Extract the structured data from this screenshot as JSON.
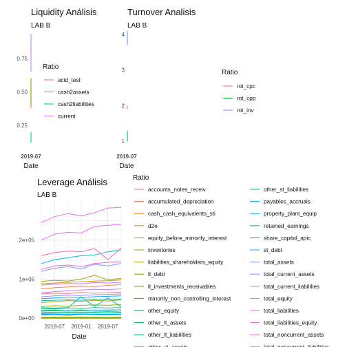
{
  "chart_data": [
    {
      "type": "line",
      "title": "Liquidity Análisis",
      "subtitle": "LAB B",
      "xlabel": "Date",
      "ylabel": "",
      "x": [
        "2019-07"
      ],
      "x_ticks": [
        "2019-07"
      ],
      "y_ticks": [
        0.25,
        0.5,
        0.75
      ],
      "y_tick_labels": [
        "0.25",
        "0.50",
        "0.75"
      ],
      "ylim": [
        0.09,
        0.97
      ],
      "grid": false,
      "legend_title": "Ratio",
      "legend_position": "right",
      "series": [
        {
          "name": "acid_test",
          "color": "#F8766D",
          "values": [
            [
              0.38,
              0.55
            ]
          ]
        },
        {
          "name": "cash2assets",
          "color": "#7CAE00",
          "values": [
            [
              0.4,
              0.6
            ]
          ]
        },
        {
          "name": "cash2liabilities",
          "color": "#00BFC4",
          "values": [
            [
              0.12,
              0.2
            ]
          ]
        },
        {
          "name": "current",
          "color": "#C77CFF",
          "values": [
            [
              0.65,
              0.93
            ]
          ]
        }
      ]
    },
    {
      "type": "line",
      "title": "Turnover Analisis",
      "subtitle": "LAB B",
      "xlabel": "Date",
      "ylabel": "",
      "x": [
        "2019-07"
      ],
      "x_ticks": [
        "2019-07"
      ],
      "y_ticks": [
        1,
        2,
        3,
        4
      ],
      "y_tick_labels": [
        "1",
        "2",
        "3",
        "4"
      ],
      "ylim": [
        0.85,
        4.15
      ],
      "grid": false,
      "legend_title": "Ratio",
      "legend_position": "right",
      "series": [
        {
          "name": "rot_cpc",
          "color": "#F8766D",
          "values": [
            [
              1.9,
              2.0
            ]
          ]
        },
        {
          "name": "rot_cpp",
          "color": "#00BA38",
          "values": [
            [
              1.0,
              1.3
            ]
          ]
        },
        {
          "name": "rot_inv",
          "color": "#619CFF",
          "values": [
            [
              3.7,
              4.1
            ]
          ]
        }
      ]
    },
    {
      "type": "line",
      "title": "Leverage Análisis",
      "subtitle": "LAB B",
      "xlabel": "Date",
      "ylabel": "",
      "x": [
        "2018-04",
        "2018-07",
        "2018-10",
        "2019-01",
        "2019-04",
        "2019-07",
        "2019-10"
      ],
      "x_ticks": [
        "2018-07",
        "2019-01",
        "2019-07"
      ],
      "y_ticks": [
        0,
        100000,
        200000
      ],
      "y_tick_labels": [
        "0e+00",
        "1e+05",
        "2e+05"
      ],
      "ylim": [
        -5000,
        300000
      ],
      "grid": true,
      "legend_title": "Ratio",
      "legend_position": "right",
      "series": [
        {
          "name": "accounts_notes_receiv",
          "color": "#F8766D",
          "values": [
            62000,
            64000,
            63000,
            66000,
            64000,
            65000,
            67000
          ]
        },
        {
          "name": "accumulated_depreciation",
          "color": "#F07E4F",
          "values": [
            75000,
            78000,
            80000,
            82000,
            81000,
            84000,
            86000
          ]
        },
        {
          "name": "cash_cash_equivalents_sti",
          "color": "#E58700",
          "values": [
            8000,
            9000,
            7000,
            10000,
            9000,
            8000,
            9000
          ]
        },
        {
          "name": "d2e",
          "color": "#D89000",
          "values": [
            1,
            1,
            1,
            1,
            1,
            1,
            1
          ]
        },
        {
          "name": "equity_before_minority_interest",
          "color": "#C99800",
          "values": [
            88000,
            90000,
            92000,
            93000,
            95000,
            96000,
            98000
          ]
        },
        {
          "name": "inventories",
          "color": "#B79F00",
          "values": [
            40000,
            42000,
            45000,
            43000,
            46000,
            44000,
            47000
          ]
        },
        {
          "name": "liabilities_shareholders_equity",
          "color": "#A3A500",
          "values": [
            94000,
            97000,
            95000,
            100000,
            110000,
            98000,
            102000
          ]
        },
        {
          "name": "lt_debt",
          "color": "#8BAB00",
          "values": [
            30000,
            32000,
            31000,
            33000,
            34000,
            33000,
            35000
          ]
        },
        {
          "name": "lt_investments_receivables",
          "color": "#6BB100",
          "values": [
            2000,
            2500,
            2200,
            2600,
            2400,
            2300,
            2500
          ]
        },
        {
          "name": "minority_non_controlling_interest",
          "color": "#39B600",
          "values": [
            500,
            600,
            500,
            700,
            600,
            500,
            600
          ]
        },
        {
          "name": "other_equity",
          "color": "#00BA38",
          "values": [
            20000,
            20500,
            20000,
            21000,
            20500,
            21000,
            21500
          ]
        },
        {
          "name": "other_lt_assets",
          "color": "#00BD5C",
          "values": [
            15000,
            15500,
            16000,
            15500,
            16000,
            16500,
            16000
          ]
        },
        {
          "name": "other_lt_liabilities",
          "color": "#00BF7D",
          "values": [
            25000,
            24000,
            26000,
            25000,
            27000,
            26000,
            27000
          ]
        },
        {
          "name": "other_st_assets",
          "color": "#00C19C",
          "values": [
            12000,
            12500,
            13000,
            12500,
            13500,
            13000,
            14000
          ]
        },
        {
          "name": "other_st_liabilities",
          "color": "#00C1B8",
          "values": [
            45000,
            46000,
            47000,
            46000,
            48000,
            47000,
            49000
          ]
        },
        {
          "name": "payables_accruals",
          "color": "#00BFD0",
          "values": [
            27000,
            26000,
            27000,
            55000,
            30000,
            52000,
            29000
          ]
        },
        {
          "name": "property_plant_equip",
          "color": "#00BBE4",
          "values": [
            140000,
            150000,
            155000,
            160000,
            162000,
            170000,
            175000
          ]
        },
        {
          "name": "retained_earnings",
          "color": "#00B4F0",
          "values": [
            50000,
            52000,
            54000,
            53000,
            55000,
            56000,
            57000
          ]
        },
        {
          "name": "share_capital_apic",
          "color": "#00ABFD",
          "values": [
            10000,
            10000,
            10000,
            10000,
            10000,
            10000,
            10000
          ]
        },
        {
          "name": "st_debt",
          "color": "#35A2FF",
          "values": [
            18000,
            19000,
            20000,
            19000,
            21000,
            20000,
            22000
          ]
        },
        {
          "name": "total_assets",
          "color": "#7997FF",
          "values": [
            120000,
            128000,
            132000,
            126000,
            138000,
            134000,
            140000
          ]
        },
        {
          "name": "total_current_assets",
          "color": "#9F8CFF",
          "values": [
            55000,
            57000,
            59000,
            58000,
            60000,
            61000,
            62000
          ]
        },
        {
          "name": "total_current_liabilities",
          "color": "#BB81FF",
          "values": [
            65000,
            68000,
            70000,
            72000,
            74000,
            73000,
            75000
          ]
        },
        {
          "name": "total_equity",
          "color": "#D076FF",
          "values": [
            85000,
            87000,
            89000,
            88000,
            91000,
            90000,
            92000
          ]
        },
        {
          "name": "total_liabilities",
          "color": "#E06EF7",
          "values": [
            200000,
            215000,
            220000,
            218000,
            235000,
            238000,
            240000
          ]
        },
        {
          "name": "total_liabilities_equity",
          "color": "#EB69E9",
          "values": [
            245000,
            260000,
            268000,
            262000,
            270000,
            282000,
            284000
          ]
        },
        {
          "name": "total_noncurrent_assets",
          "color": "#F564DD",
          "values": [
            125000,
            134000,
            136000,
            132000,
            140000,
            143000,
            145000
          ]
        },
        {
          "name": "total_noncurrent_liabilities",
          "color": "#FF61C3",
          "values": [
            160000,
            168000,
            172000,
            170000,
            178000,
            150000,
            180000
          ]
        }
      ]
    }
  ]
}
